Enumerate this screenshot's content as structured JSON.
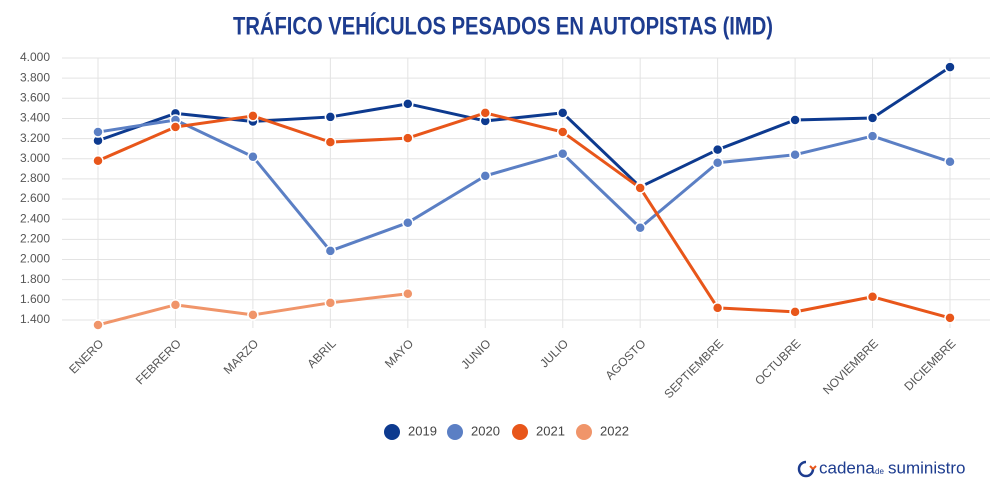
{
  "chart_data": {
    "type": "line",
    "title": "TRÁFICO VEHÍCULOS PESADOS EN AUTOPISTAS (IMD)",
    "categories": [
      "ENERO",
      "FEBRERO",
      "MARZO",
      "ABRIL",
      "MAYO",
      "JUNIO",
      "JULIO",
      "AGOSTO",
      "SEPTIEMBRE",
      "OCTUBRE",
      "NOVIEMBRE",
      "DICIEMBRE"
    ],
    "series": [
      {
        "name": "2019",
        "color": "#0d3a8f",
        "values": [
          3180,
          3450,
          3370,
          3415,
          3545,
          3375,
          3455,
          2720,
          3090,
          3385,
          3405,
          3910
        ]
      },
      {
        "name": "2020",
        "color": "#5b7fc4",
        "values": [
          3265,
          3385,
          3020,
          2085,
          2365,
          2830,
          3050,
          2315,
          2960,
          3040,
          3225,
          2970
        ]
      },
      {
        "name": "2021",
        "color": "#e8561a",
        "values": [
          2980,
          3315,
          3425,
          3165,
          3205,
          3455,
          3265,
          2710,
          1520,
          1480,
          1630,
          1420
        ]
      },
      {
        "name": "2022",
        "color": "#f0956a",
        "values": [
          1350,
          1550,
          1450,
          1570,
          1660,
          null,
          null,
          null,
          null,
          null,
          null,
          null
        ]
      }
    ],
    "ylim": [
      1320,
      4000
    ],
    "yticks": [
      {
        "value": 1400,
        "label": "1.400"
      },
      {
        "value": 1600,
        "label": "1.600"
      },
      {
        "value": 1800,
        "label": "1.800"
      },
      {
        "value": 2000,
        "label": "2.000"
      },
      {
        "value": 2200,
        "label": "2.200"
      },
      {
        "value": 2400,
        "label": "2.400"
      },
      {
        "value": 2600,
        "label": "2.600"
      },
      {
        "value": 2800,
        "label": "2.800"
      },
      {
        "value": 3000,
        "label": "3.000"
      },
      {
        "value": 3200,
        "label": "3.200"
      },
      {
        "value": 3400,
        "label": "3.400"
      },
      {
        "value": 3600,
        "label": "3.600"
      },
      {
        "value": 3800,
        "label": "3.800"
      },
      {
        "value": 4000,
        "label": "4.000"
      }
    ],
    "grid": true,
    "legend": "bottom"
  },
  "footer": {
    "brand_1": "cadena",
    "brand_2": "de",
    "brand_3": "suministro"
  }
}
